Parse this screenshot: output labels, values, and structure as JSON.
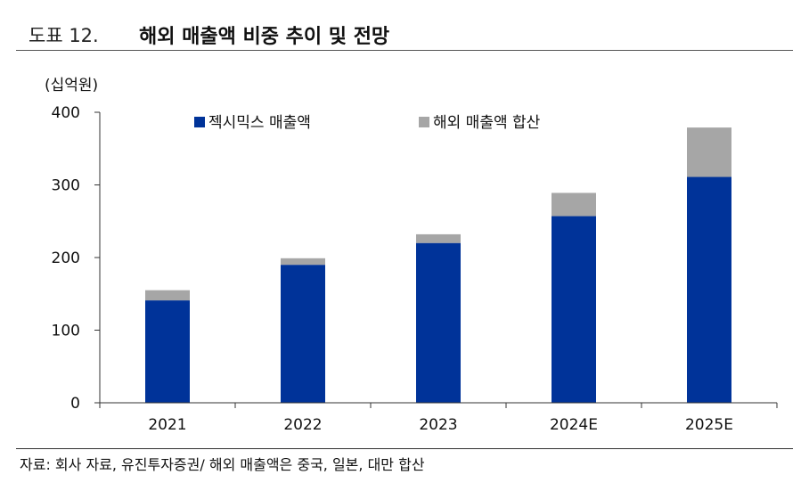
{
  "header": {
    "figure_label": "도표 12.",
    "title": "해외 매출액 비중 추이 및 전망"
  },
  "footer": {
    "source": "자료: 회사 자료, 유진투자증권/ 해외 매출액은 중국, 일본, 대만 합산"
  },
  "colors": {
    "domestic": "#003399",
    "overseas": "#a6a6a6"
  },
  "chart_data": {
    "type": "bar",
    "stacked": true,
    "unit_label": "(십억원)",
    "categories": [
      "2021",
      "2022",
      "2023",
      "2024E",
      "2025E"
    ],
    "series": [
      {
        "name": "젝시믹스 매출액",
        "values": [
          141,
          190,
          220,
          257,
          311
        ]
      },
      {
        "name": "해외 매출액 합산",
        "values": [
          14,
          9,
          12,
          32,
          68
        ]
      }
    ],
    "ylim": [
      0,
      400
    ],
    "yticks": [
      "0",
      "100",
      "200",
      "300",
      "400"
    ],
    "legend_position": "top",
    "grid": false
  }
}
